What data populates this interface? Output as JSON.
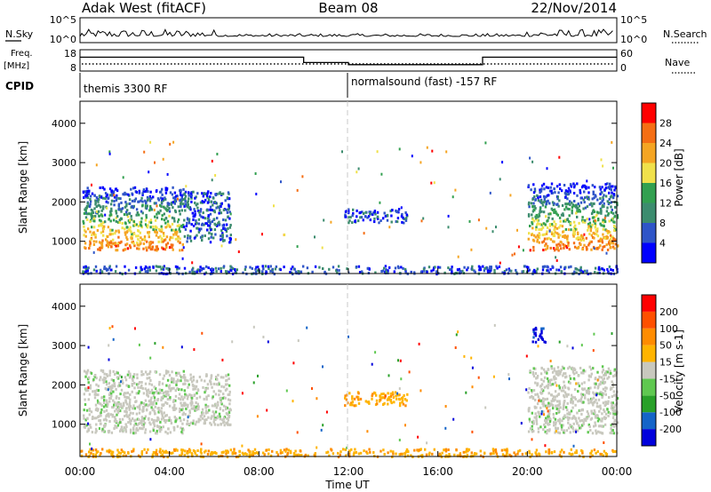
{
  "header": {
    "station": "Adak West (fitACF)",
    "beam": "Beam 08",
    "date": "22/Nov/2014"
  },
  "top_panels": {
    "nsky": {
      "label": "N.Sky",
      "right_label": "N.Search",
      "left_ticks": [
        "10^5",
        "10^0"
      ],
      "right_ticks": [
        "10^5",
        "10^0"
      ]
    },
    "freq": {
      "label_line1": "Freq.",
      "label_line2": "[MHz]",
      "right_label": "Nave",
      "left_ticks": [
        "18",
        "8"
      ],
      "right_ticks": [
        "60",
        "0"
      ],
      "freq_levels_mhz": [
        {
          "start_hour": 0.0,
          "end_hour": 10.0,
          "value": 14.5
        },
        {
          "start_hour": 10.0,
          "end_hour": 12.0,
          "value": 12.0
        },
        {
          "start_hour": 12.0,
          "end_hour": 18.0,
          "value": 11.0
        },
        {
          "start_hour": 18.0,
          "end_hour": 24.0,
          "value": 14.5
        }
      ]
    },
    "cpid": {
      "label": "CPID",
      "segments": [
        {
          "start_hour": 0.0,
          "end_hour": 12.0,
          "text": "themis 3300 RF"
        },
        {
          "start_hour": 12.0,
          "end_hour": 24.0,
          "text": "normalsound (fast) -157 RF"
        }
      ]
    }
  },
  "colors": {
    "power_scale": [
      "#0000ff",
      "#2f55c8",
      "#3c8c6e",
      "#32a050",
      "#f0e14b",
      "#f5a523",
      "#f56e14",
      "#ff0000"
    ],
    "velocity_scale": [
      "#ff0000",
      "#ff5000",
      "#ff8c00",
      "#ffb400",
      "#c8c8be",
      "#5fc850",
      "#28a028",
      "#1464c8",
      "#0000dc"
    ]
  },
  "chart_data": [
    {
      "type": "heatmap",
      "title": "Power",
      "ylabel": "Slant Range [km]",
      "xlabel": "Time UT",
      "x_ticks": [
        "00:00",
        "04:00",
        "08:00",
        "12:00",
        "16:00",
        "20:00",
        "00:00"
      ],
      "xlim_hours": [
        0,
        24
      ],
      "y_ticks": [
        "1000",
        "2000",
        "3000",
        "4000"
      ],
      "ylim_km": [
        180,
        4560
      ],
      "colorbar": {
        "label": "Power [dB]",
        "ticks": [
          "4",
          "8",
          "12",
          "16",
          "20",
          "24",
          "28"
        ],
        "range": [
          0,
          30
        ]
      },
      "regions": [
        {
          "t0": 0.1,
          "t1": 4.6,
          "r0": 800,
          "r1": 2400,
          "level": "high"
        },
        {
          "t0": 4.6,
          "t1": 6.7,
          "r0": 1000,
          "r1": 2300,
          "level": "low"
        },
        {
          "t0": 11.8,
          "t1": 14.6,
          "r0": 1500,
          "r1": 1850,
          "level": "low"
        },
        {
          "t0": 20.0,
          "t1": 24.0,
          "r0": 800,
          "r1": 2500,
          "level": "high"
        },
        {
          "t0": 0.0,
          "t1": 24.0,
          "r0": 200,
          "r1": 400,
          "level": "low"
        }
      ]
    },
    {
      "type": "heatmap",
      "title": "Velocity",
      "ylabel": "Slant Range [km]",
      "xlabel": "Time UT",
      "x_ticks": [
        "00:00",
        "04:00",
        "08:00",
        "12:00",
        "16:00",
        "20:00",
        "00:00"
      ],
      "xlim_hours": [
        0,
        24
      ],
      "y_ticks": [
        "1000",
        "2000",
        "3000",
        "4000"
      ],
      "ylim_km": [
        180,
        4560
      ],
      "colorbar": {
        "label": "Velocity [m s-1]",
        "ticks": [
          "200",
          "100",
          "50",
          "15",
          "-15",
          "-50",
          "-100",
          "-200"
        ],
        "range": [
          -250,
          250
        ]
      },
      "regions": [
        {
          "t0": 0.1,
          "t1": 4.6,
          "r0": 800,
          "r1": 2400,
          "level": "ground"
        },
        {
          "t0": 4.6,
          "t1": 6.7,
          "r0": 1000,
          "r1": 2300,
          "level": "ground"
        },
        {
          "t0": 11.8,
          "t1": 14.6,
          "r0": 1500,
          "r1": 1850,
          "level": "away"
        },
        {
          "t0": 20.0,
          "t1": 24.0,
          "r0": 800,
          "r1": 2500,
          "level": "ground"
        },
        {
          "t0": 20.2,
          "t1": 20.9,
          "r0": 3100,
          "r1": 3500,
          "level": "toward"
        },
        {
          "t0": 0.0,
          "t1": 24.0,
          "r0": 200,
          "r1": 400,
          "level": "away"
        }
      ]
    }
  ]
}
